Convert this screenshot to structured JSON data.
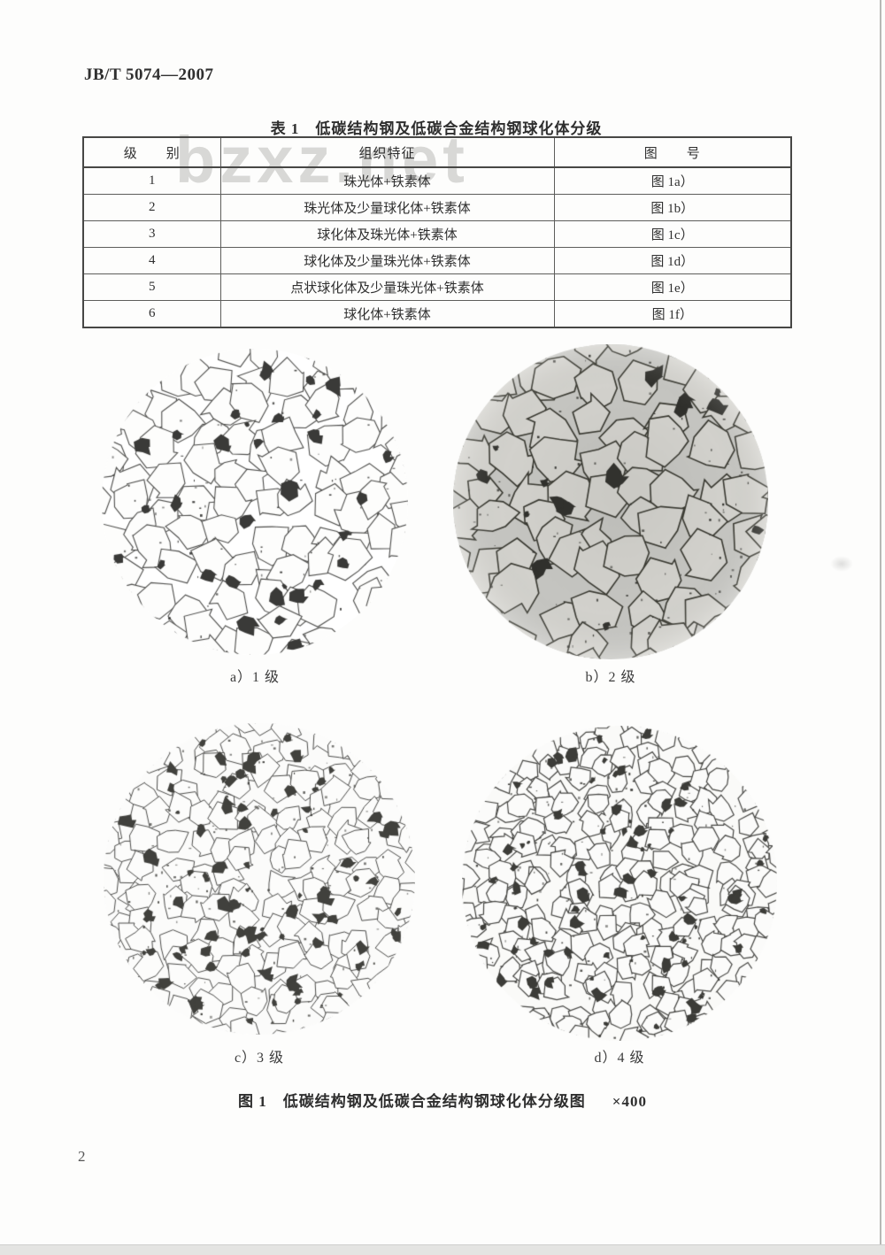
{
  "page": {
    "header": "JB/T 5074—2007",
    "page_number": "2",
    "watermark": "bzxz.net"
  },
  "table": {
    "title": "表 1　低碳结构钢及低碳合金结构钢球化体分级",
    "columns": [
      "级　　别",
      "组织特征",
      "图　　号"
    ],
    "rows": [
      {
        "grade": "1",
        "feature": "珠光体+铁素体",
        "figure": "图 1a）"
      },
      {
        "grade": "2",
        "feature": "珠光体及少量球化体+铁素体",
        "figure": "图 1b）"
      },
      {
        "grade": "3",
        "feature": "球化体及珠光体+铁素体",
        "figure": "图 1c）"
      },
      {
        "grade": "4",
        "feature": "球化体及少量珠光体+铁素体",
        "figure": "图 1d）"
      },
      {
        "grade": "5",
        "feature": "点状球化体及少量珠光体+铁素体",
        "figure": "图 1e）"
      },
      {
        "grade": "6",
        "feature": "球化体+铁素体",
        "figure": "图 1f）"
      }
    ]
  },
  "figure": {
    "caption": "图 1　低碳结构钢及低碳合金结构钢球化体分级图",
    "magnification": "×400",
    "micrographs": [
      {
        "label": "a）1 级",
        "render": {
          "seed": 11,
          "r": 173,
          "cell": 36,
          "bg": "#ffffff",
          "grain": "#fdfdfc",
          "line": "#4e4e4c",
          "lw": 1.1,
          "blobs": 60,
          "blobR": 8,
          "blob": "#3a3a38",
          "specks": 70,
          "shade": false
        }
      },
      {
        "label": "b）2 级",
        "render": {
          "seed": 22,
          "r": 178,
          "cell": 42,
          "bg": "#c9c9c5",
          "grain": "#d7d6d1",
          "line": "#37372f",
          "lw": 1.6,
          "blobs": 55,
          "blobR": 9,
          "blob": "#2e2e2a",
          "specks": 90,
          "shade": true
        }
      },
      {
        "label": "c）3 级",
        "render": {
          "seed": 33,
          "r": 176,
          "cell": 27,
          "bg": "#fbfbfa",
          "grain": "#fcfcfb",
          "line": "#59595六",
          "lw": 1.0,
          "blobs": 150,
          "blobR": 6.5,
          "blob": "#41413d",
          "specks": 130,
          "shade": false
        }
      },
      {
        "label": "d）4 级",
        "render": {
          "seed": 44,
          "r": 178,
          "cell": 23,
          "bg": "#fafaf8",
          "grain": "#fbfbfa",
          "line": "#474744",
          "lw": 1.2,
          "blobs": 170,
          "blobR": 5.5,
          "blob": "#3c3c38",
          "specks": 150,
          "shade": false
        }
      }
    ]
  }
}
